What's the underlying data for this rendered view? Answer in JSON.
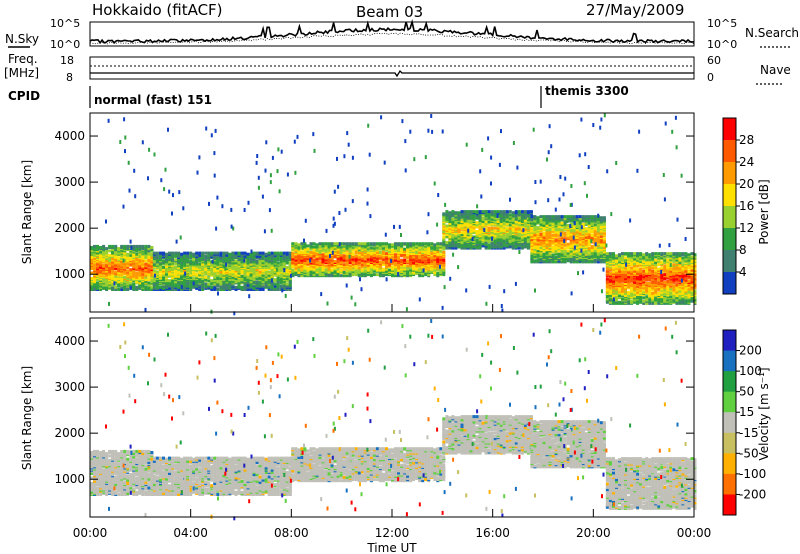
{
  "header": {
    "title": "Hokkaido (fitACF)",
    "beam": "Beam 03",
    "date": "27/May/2009"
  },
  "side_labels": {
    "nsky": "N.Sky",
    "nsearch": "N.Search",
    "freq": "Freq.",
    "freq_unit": "[MHz]",
    "nave": "Nave",
    "cpid": "CPID"
  },
  "summary_axes": {
    "nsky_ticks": [
      "10^5",
      "10^0"
    ],
    "nsearch_ticks": [
      "10^5",
      "10^0"
    ],
    "freq_ticks": [
      "18",
      "8"
    ],
    "nave_ticks": [
      "60",
      "0"
    ]
  },
  "cpid_labels": [
    "normal (fast) 151",
    "themis 3300"
  ],
  "x_axis": {
    "label": "Time UT",
    "ticks": [
      "00:00",
      "04:00",
      "08:00",
      "12:00",
      "16:00",
      "20:00",
      "00:00"
    ]
  },
  "y_axis": {
    "label": "Slant Range [km]",
    "ticks": [
      "1000",
      "2000",
      "3000",
      "4000"
    ]
  },
  "power_colorbar": {
    "label": "Power [dB]",
    "ticks": [
      "28",
      "24",
      "20",
      "16",
      "12",
      "8",
      "4"
    ],
    "colors": [
      "#ff0000",
      "#ff5a00",
      "#ff9a00",
      "#ffe000",
      "#98d030",
      "#30a040",
      "#408070",
      "#1040c0",
      "#0000ff"
    ]
  },
  "velocity_colorbar": {
    "label": "Velocity [m s⁻¹]",
    "ticks": [
      "200",
      "100",
      "50",
      "15",
      "-15",
      "-50",
      "-100",
      "-200"
    ],
    "colors": [
      "#2020c0",
      "#1870c0",
      "#20a040",
      "#60d040",
      "#c0c0b8",
      "#c8c060",
      "#ffb000",
      "#ff7000",
      "#ff0000"
    ]
  },
  "chart_data": [
    {
      "type": "heatmap",
      "name": "power",
      "x_range": [
        "00:00",
        "24:00"
      ],
      "y_range_km": [
        180,
        4500
      ],
      "scale_db": [
        0,
        30
      ],
      "bands": [
        {
          "t0": 0.0,
          "t1": 2.5,
          "r0": 700,
          "r1": 1650,
          "peak_db": 26
        },
        {
          "t0": 2.5,
          "t1": 8.0,
          "r0": 700,
          "r1": 1500,
          "peak_db": 18
        },
        {
          "t0": 8.0,
          "t1": 14.0,
          "r0": 1000,
          "r1": 1700,
          "peak_db": 28
        },
        {
          "t0": 14.0,
          "t1": 17.5,
          "r0": 1600,
          "r1": 2400,
          "peak_db": 20
        },
        {
          "t0": 17.5,
          "t1": 20.5,
          "r0": 1300,
          "r1": 2300,
          "peak_db": 24
        },
        {
          "t0": 20.5,
          "t1": 24.0,
          "r0": 400,
          "r1": 1500,
          "peak_db": 28
        }
      ]
    },
    {
      "type": "heatmap",
      "name": "velocity",
      "x_range": [
        "00:00",
        "24:00"
      ],
      "y_range_km": [
        180,
        4500
      ],
      "scale_ms": [
        -200,
        200
      ],
      "dominant_value": 0
    }
  ]
}
